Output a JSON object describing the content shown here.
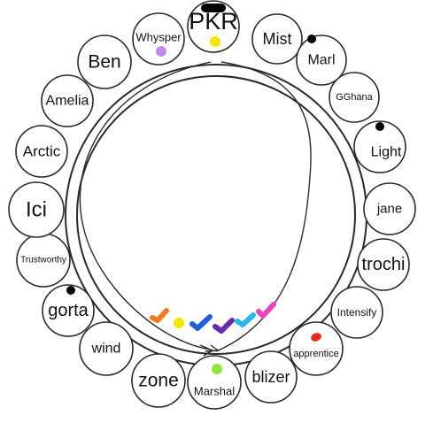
{
  "colors": {
    "outline": "#2a2a2a",
    "fill": "#ffffff",
    "background": "#ffffff"
  },
  "seats": [
    {
      "label": "PKR",
      "mark": "#000000",
      "dot": "#f5e600"
    },
    {
      "label": "Mist"
    },
    {
      "label": "Marl",
      "mark": "#000000"
    },
    {
      "label": "GGhana"
    },
    {
      "label": "Light",
      "mark": "#000000"
    },
    {
      "label": "jane"
    },
    {
      "label": "trochi"
    },
    {
      "label": "Intensify"
    },
    {
      "label": "apprentice",
      "dot": "#e8281e"
    },
    {
      "label": "blizer"
    },
    {
      "label": "Marshal",
      "dot": "#8ee63c"
    },
    {
      "label": "zone"
    },
    {
      "label": "wind"
    },
    {
      "label": "gorta",
      "mark": "#000000"
    },
    {
      "label": "Trustworthy"
    },
    {
      "label": "Ici"
    },
    {
      "label": "Arctic"
    },
    {
      "label": "Amelia"
    },
    {
      "label": "Ben"
    },
    {
      "label": "Whysper",
      "dot": "#c08ce8"
    }
  ],
  "checkmarks": [
    "#f07a24",
    "#f5e600",
    "#1f5ed8",
    "#6a2ab0",
    "#2ab8e6",
    "#e846c0"
  ]
}
